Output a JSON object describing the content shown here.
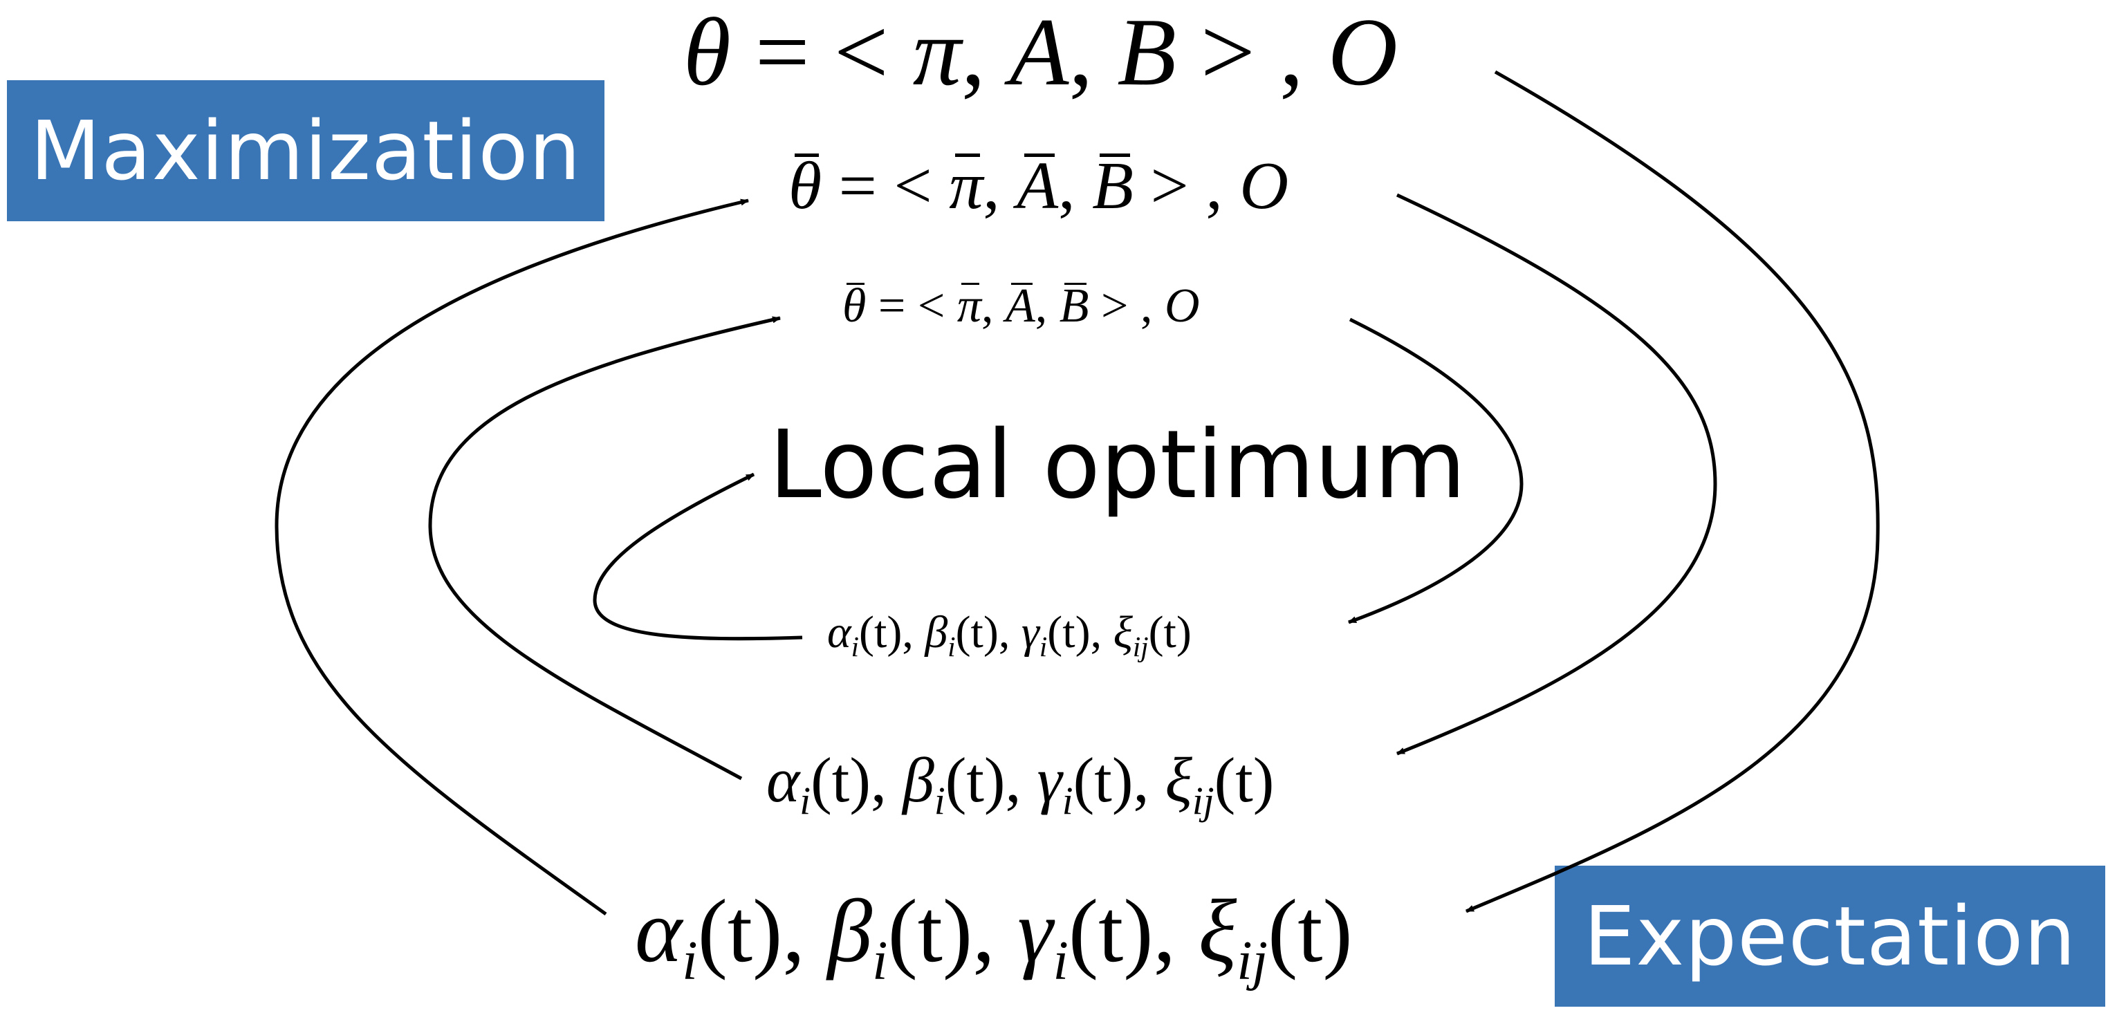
{
  "colors": {
    "box_fill": "#3a75b6",
    "box_text": "#ffffff",
    "line": "#000000"
  },
  "labels": {
    "maximization": "Maximization",
    "expectation": "Expectation",
    "center": "Local optimum"
  },
  "params": {
    "full": {
      "theta": "θ",
      "eq": " = < ",
      "pi": "π",
      "comma1": ", ",
      "A": "A",
      "comma2": ", ",
      "B": "B",
      "tail": " > , ",
      "O": "O"
    },
    "bar": {
      "theta": "θ",
      "eq": " = < ",
      "pi": "π",
      "comma1": ", ",
      "A": "A",
      "comma2": ", ",
      "B": "B",
      "tail": " > , ",
      "O": "O"
    }
  },
  "expectation_terms": {
    "alpha": "α",
    "beta": "β",
    "gamma": "γ",
    "xi": "ξ",
    "sub_i": "i",
    "sub_ij": "ij",
    "arg": "(t)",
    "sep": ", "
  }
}
